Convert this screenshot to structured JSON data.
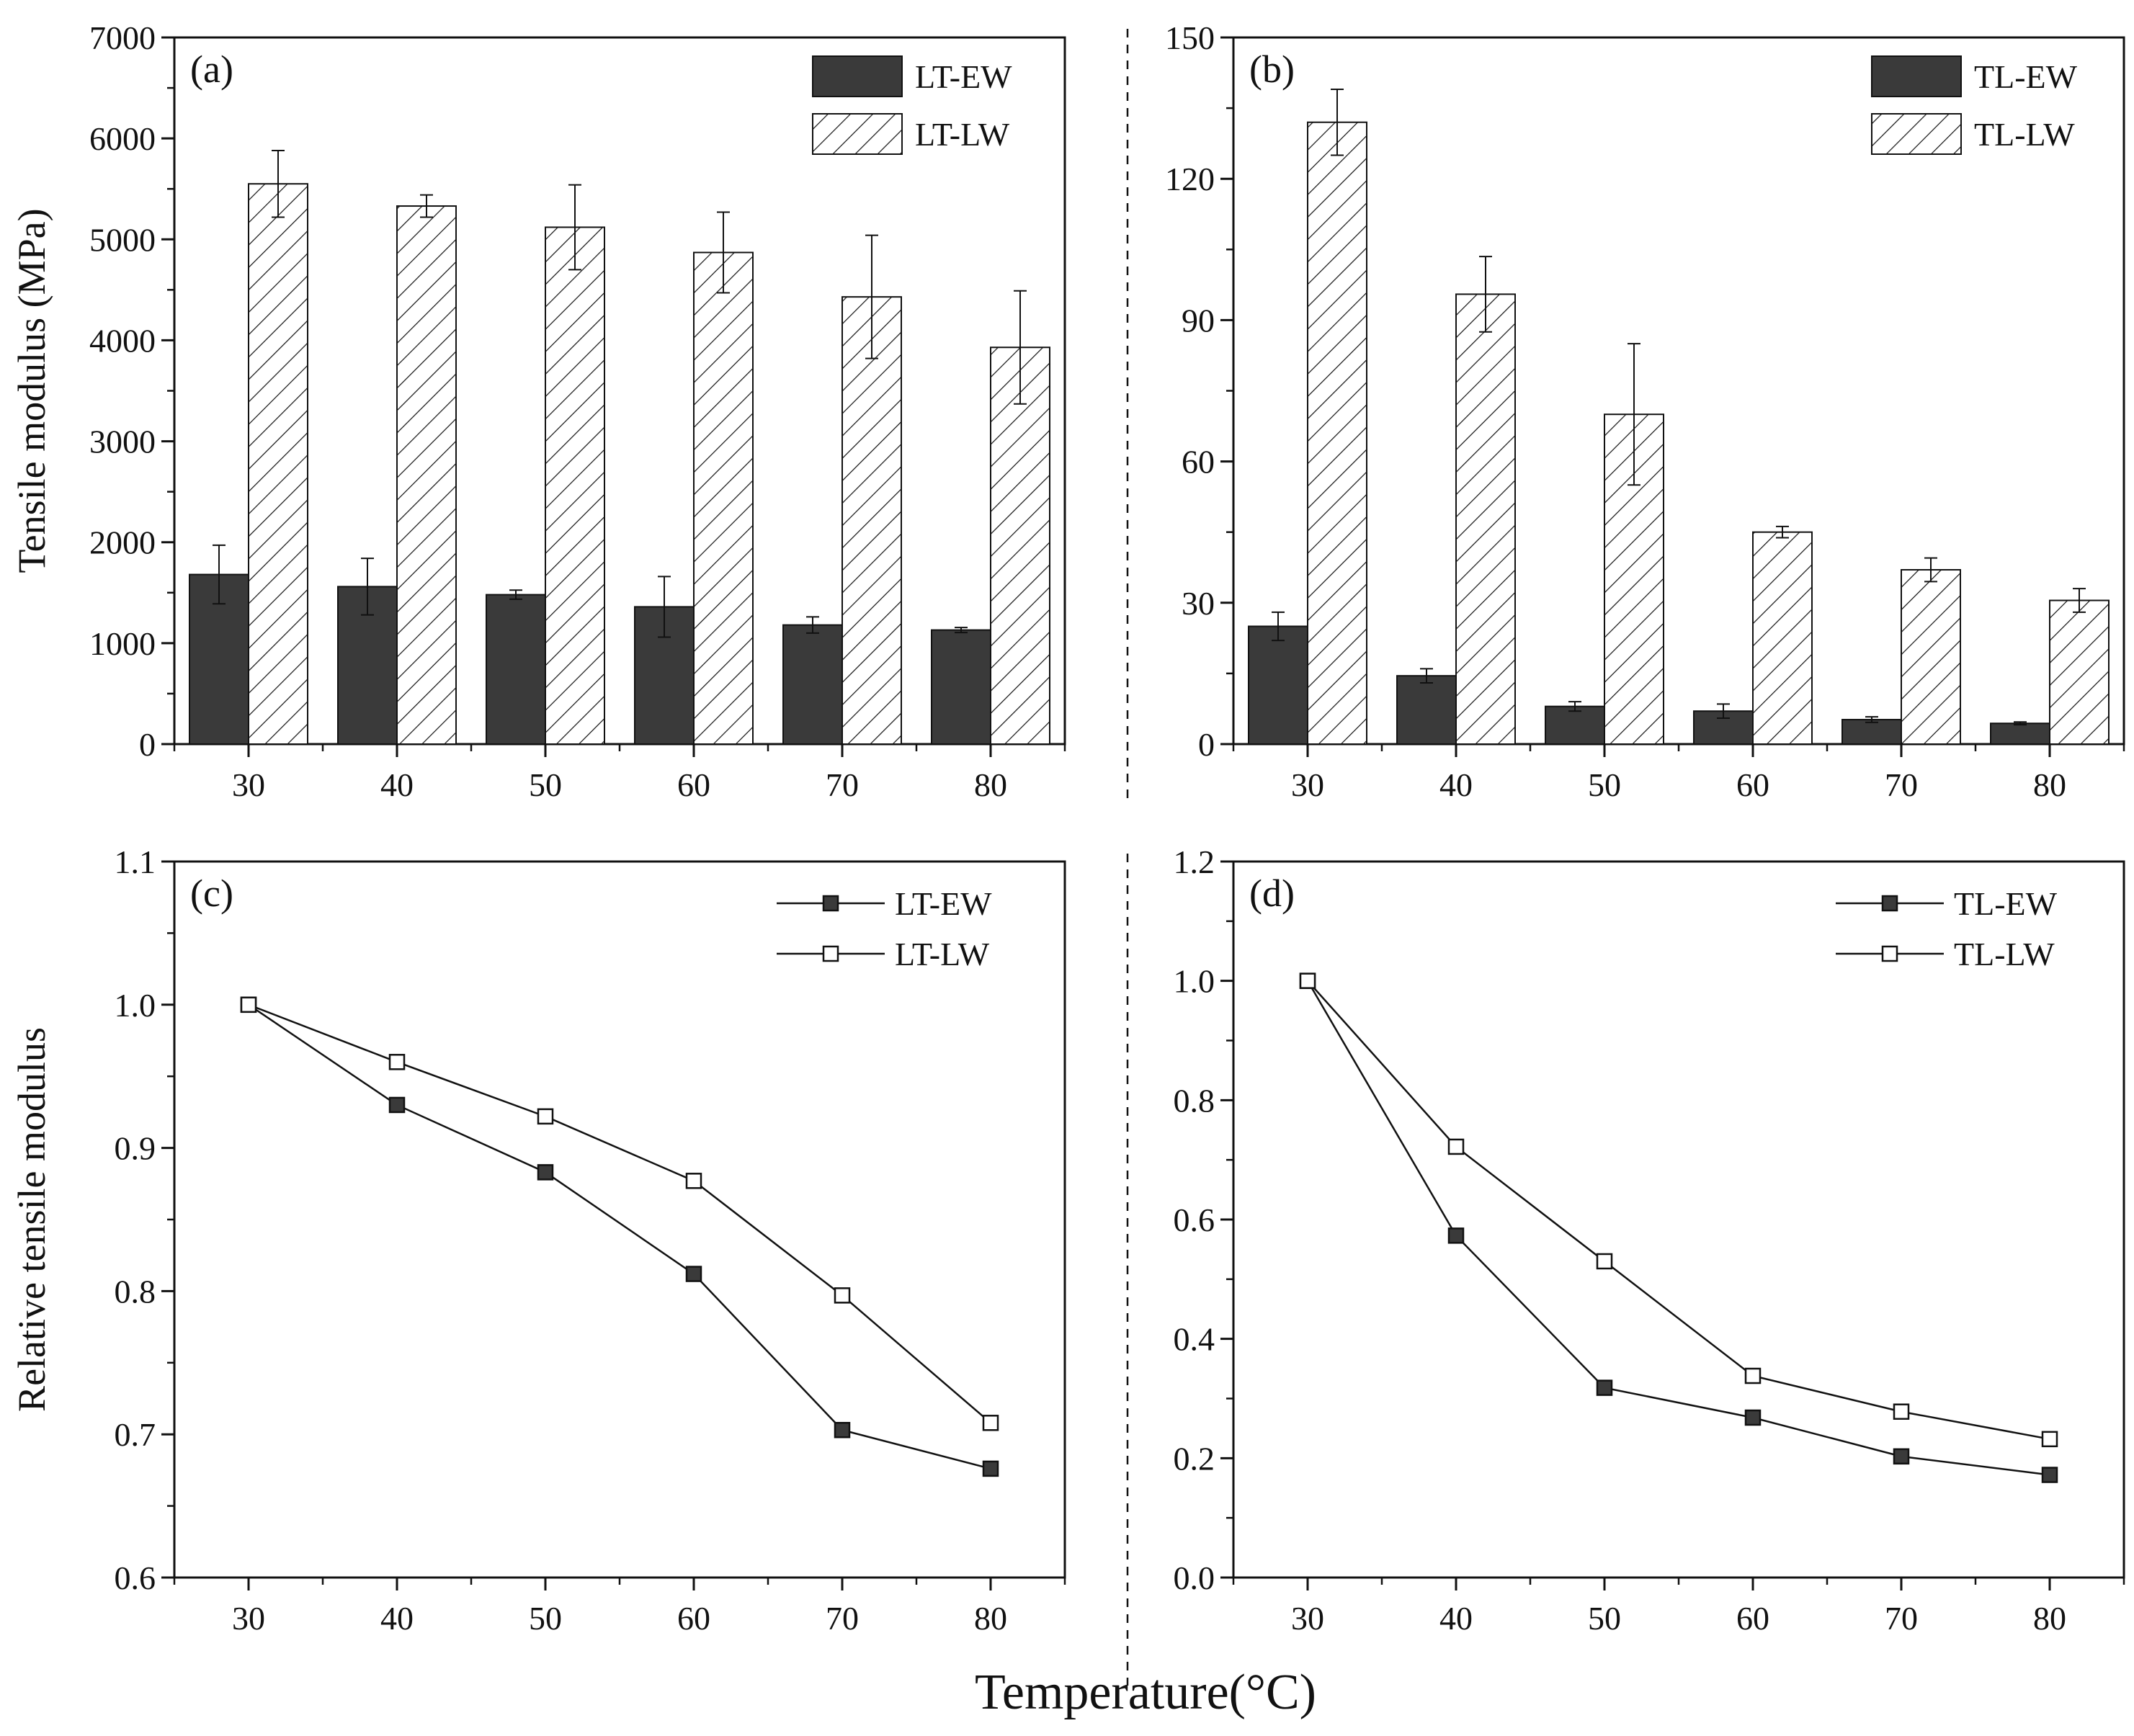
{
  "figure": {
    "shared_xlabel": "Temperature(°C)",
    "colors": {
      "ew": "#3a3a3a",
      "lw": "#ffffff",
      "axis": "#111111"
    }
  },
  "chart_data": [
    {
      "id": "a",
      "type": "bar",
      "panel_label": "(a)",
      "categories": [
        "30",
        "40",
        "50",
        "60",
        "70",
        "80"
      ],
      "series": [
        {
          "name": "LT-EW",
          "style": "solid",
          "values": [
            1680,
            1560,
            1480,
            1360,
            1180,
            1130
          ],
          "errors": [
            290,
            280,
            45,
            300,
            80,
            25
          ]
        },
        {
          "name": "LT-LW",
          "style": "hatch",
          "values": [
            5550,
            5330,
            5120,
            4870,
            4430,
            3930
          ],
          "errors": [
            330,
            110,
            420,
            400,
            610,
            560
          ]
        }
      ],
      "xlabel": "",
      "ylabel": "Tensile modulus (MPa)",
      "ylim": [
        0,
        7000
      ],
      "yticks": [
        "0",
        "1000",
        "2000",
        "3000",
        "4000",
        "5000",
        "6000",
        "7000"
      ],
      "legend": "top-right",
      "grid": false
    },
    {
      "id": "b",
      "type": "bar",
      "panel_label": "(b)",
      "categories": [
        "30",
        "40",
        "50",
        "60",
        "70",
        "80"
      ],
      "series": [
        {
          "name": "TL-EW",
          "style": "solid",
          "values": [
            25,
            14.5,
            8,
            7,
            5.2,
            4.4
          ],
          "errors": [
            3,
            1.5,
            1,
            1.5,
            0.6,
            0.3
          ]
        },
        {
          "name": "TL-LW",
          "style": "hatch",
          "values": [
            132,
            95.5,
            70,
            45,
            37,
            30.5
          ],
          "errors": [
            7,
            8,
            15,
            1.2,
            2.5,
            2.5
          ]
        }
      ],
      "xlabel": "",
      "ylabel": "",
      "ylim": [
        0,
        150
      ],
      "yticks": [
        "0",
        "30",
        "60",
        "90",
        "120",
        "150"
      ],
      "legend": "top-right",
      "grid": false
    },
    {
      "id": "c",
      "type": "line",
      "panel_label": "(c)",
      "x": [
        30,
        40,
        50,
        60,
        70,
        80
      ],
      "series": [
        {
          "name": "LT-EW",
          "marker": "filled-square",
          "values": [
            1.0,
            0.93,
            0.883,
            0.812,
            0.703,
            0.676
          ]
        },
        {
          "name": "LT-LW",
          "marker": "open-square",
          "values": [
            1.0,
            0.96,
            0.922,
            0.877,
            0.797,
            0.708
          ]
        }
      ],
      "xlabel": "",
      "ylabel": "Relative tensile modulus",
      "xticks": [
        "30",
        "40",
        "50",
        "60",
        "70",
        "80"
      ],
      "ylim": [
        0.6,
        1.1
      ],
      "yticks": [
        "0.6",
        "0.7",
        "0.8",
        "0.9",
        "1.0",
        "1.1"
      ],
      "legend": "top-right",
      "grid": false
    },
    {
      "id": "d",
      "type": "line",
      "panel_label": "(d)",
      "x": [
        30,
        40,
        50,
        60,
        70,
        80
      ],
      "series": [
        {
          "name": "TL-EW",
          "marker": "filled-square",
          "values": [
            1.0,
            0.573,
            0.318,
            0.268,
            0.203,
            0.172
          ]
        },
        {
          "name": "TL-LW",
          "marker": "open-square",
          "values": [
            1.0,
            0.722,
            0.53,
            0.338,
            0.278,
            0.232
          ]
        }
      ],
      "xlabel": "",
      "ylabel": "",
      "xticks": [
        "30",
        "40",
        "50",
        "60",
        "70",
        "80"
      ],
      "ylim": [
        0.0,
        1.2
      ],
      "yticks": [
        "0.0",
        "0.2",
        "0.4",
        "0.6",
        "0.8",
        "1.0",
        "1.2"
      ],
      "legend": "top-right",
      "grid": false
    }
  ]
}
